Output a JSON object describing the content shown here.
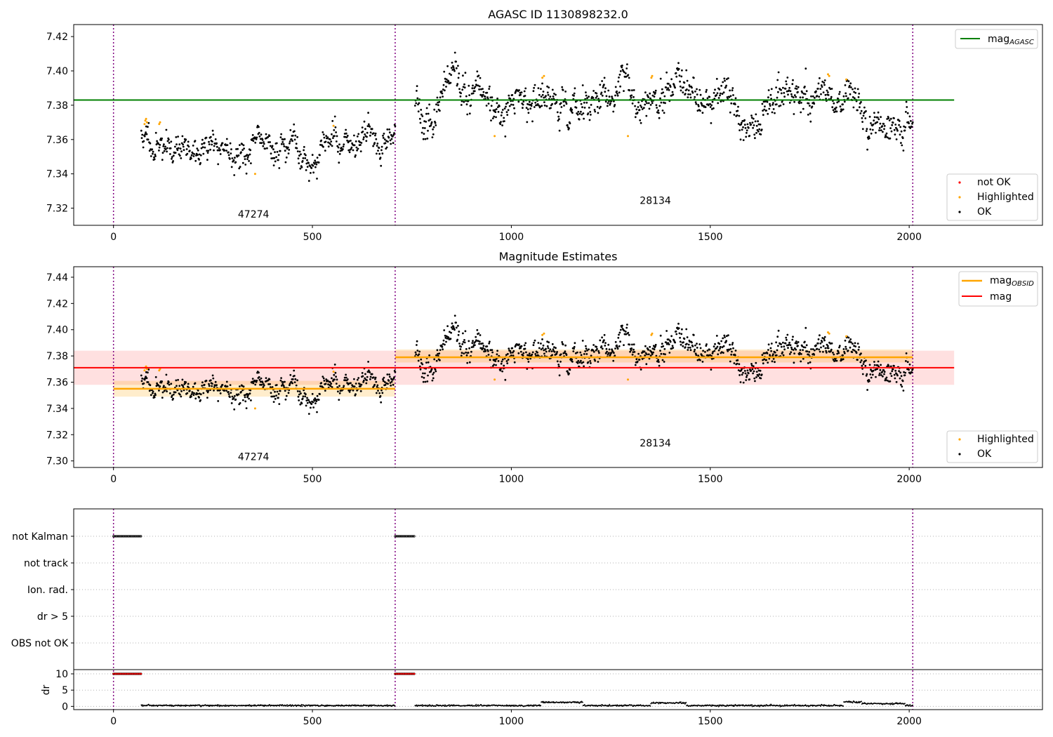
{
  "chart_data": [
    {
      "type": "scatter",
      "title": "AGASC ID 1130898232.0",
      "xlim": [
        -100,
        2335
      ],
      "ylim": [
        7.31,
        7.427
      ],
      "xticks": [
        0,
        500,
        1000,
        1500,
        2000
      ],
      "xtick_labels": [
        "0",
        "500",
        "1000",
        "1500",
        "2000"
      ],
      "yticks": [
        7.32,
        7.34,
        7.36,
        7.38,
        7.4,
        7.42
      ],
      "ytick_labels": [
        "7.32",
        "7.34",
        "7.36",
        "7.38",
        "7.40",
        "7.42"
      ],
      "obs_boundaries": [
        0,
        708,
        2009
      ],
      "obs_labels": [
        {
          "text": "47274",
          "x": 352,
          "y": 7.3145
        },
        {
          "text": "28134",
          "x": 1362,
          "y": 7.3225
        }
      ],
      "mag_agasc": 7.383,
      "mag_agasc_x": [
        -100,
        2113
      ],
      "mag_agasc_color": "#008000",
      "legend_top": [
        "mag_AGASC"
      ],
      "legend_bottom": [
        "not OK",
        "Highlighted",
        "OK"
      ],
      "series_colors": {
        "not OK": "#ff0000",
        "Highlighted": "#ffa500",
        "OK": "#000000"
      },
      "highlighted_points": [
        {
          "x": 78,
          "y": 7.369
        },
        {
          "x": 80,
          "y": 7.371
        },
        {
          "x": 82,
          "y": 7.372
        },
        {
          "x": 84,
          "y": 7.37
        },
        {
          "x": 115,
          "y": 7.369
        },
        {
          "x": 117,
          "y": 7.37
        },
        {
          "x": 356,
          "y": 7.34
        },
        {
          "x": 553,
          "y": 7.368
        },
        {
          "x": 958,
          "y": 7.362
        },
        {
          "x": 1078,
          "y": 7.396
        },
        {
          "x": 1082,
          "y": 7.397
        },
        {
          "x": 1293,
          "y": 7.362
        },
        {
          "x": 1352,
          "y": 7.396
        },
        {
          "x": 1354,
          "y": 7.397
        },
        {
          "x": 1796,
          "y": 7.398
        },
        {
          "x": 1799,
          "y": 7.397
        },
        {
          "x": 1842,
          "y": 7.395
        }
      ],
      "ok_segments": [
        {
          "x0": 70,
          "x1": 708,
          "n": 520,
          "level": 7.355,
          "noise": 0.0045,
          "start_level": 7.362,
          "seed": 11
        },
        {
          "x0": 758,
          "x1": 2009,
          "n": 1010,
          "level": 7.379,
          "noise": 0.0055,
          "start_level": 7.386,
          "seed": 23
        }
      ]
    },
    {
      "type": "scatter",
      "title": "Magnitude Estimates",
      "xlim": [
        -100,
        2335
      ],
      "ylim": [
        7.295,
        7.448
      ],
      "xticks": [
        0,
        500,
        1000,
        1500,
        2000
      ],
      "xtick_labels": [
        "0",
        "500",
        "1000",
        "1500",
        "2000"
      ],
      "yticks": [
        7.3,
        7.32,
        7.34,
        7.36,
        7.38,
        7.4,
        7.42,
        7.44
      ],
      "ytick_labels": [
        "7.30",
        "7.32",
        "7.34",
        "7.36",
        "7.38",
        "7.40",
        "7.42",
        "7.44"
      ],
      "obs_boundaries": [
        0,
        708,
        2009
      ],
      "obs_labels": [
        {
          "text": "47274",
          "x": 352,
          "y": 7.3005
        },
        {
          "text": "28134",
          "x": 1362,
          "y": 7.311
        }
      ],
      "mag": 7.371,
      "mag_band": [
        7.358,
        7.384
      ],
      "mag_x": [
        -100,
        2113
      ],
      "mag_color": "#ff0000",
      "mag_obsid": [
        {
          "x0": 0,
          "x1": 708,
          "value": 7.355,
          "band": [
            7.349,
            7.361
          ]
        },
        {
          "x0": 708,
          "x1": 2009,
          "value": 7.379,
          "band": [
            7.375,
            7.385
          ]
        }
      ],
      "mag_obsid_color": "#ffa500",
      "legend_top": [
        "mag_OBSID",
        "mag"
      ],
      "legend_bottom": [
        "Highlighted",
        "OK"
      ]
    },
    {
      "type": "scatter",
      "xlim": [
        -100,
        2335
      ],
      "xticks": [
        0,
        500,
        1000,
        1500,
        2000
      ],
      "xtick_labels": [
        "0",
        "500",
        "1000",
        "1500",
        "2000"
      ],
      "flag_labels": [
        "not Kalman",
        "not track",
        "Ion. rad.",
        "dr > 5",
        "OBS not OK"
      ],
      "not_kalman_ranges": [
        [
          0,
          70
        ],
        [
          708,
          758
        ]
      ],
      "dr": {
        "ylabel": "dr",
        "yticks": [
          0,
          5,
          10
        ],
        "ytick_labels": [
          "0",
          "5",
          "10"
        ],
        "ylim": [
          -1,
          11.3
        ],
        "saturated_ranges": [
          [
            0,
            70
          ],
          [
            708,
            758
          ]
        ],
        "saturated_value": 10,
        "saturated_color": "#ff0000",
        "trace_segments": [
          [
            70,
            708
          ],
          [
            758,
            2009
          ]
        ],
        "bump_ranges": [
          [
            1075,
            1180,
            1.0
          ],
          [
            1350,
            1440,
            0.8
          ],
          [
            1835,
            1880,
            1.1
          ],
          [
            1880,
            1990,
            0.6
          ]
        ]
      }
    }
  ],
  "top_legend": {
    "line_label": "mag",
    "line_sub": "AGASC",
    "scatter_labels": [
      "not OK",
      "Highlighted",
      "OK"
    ]
  },
  "mid_legend": {
    "obsid_label": "mag",
    "obsid_sub": "OBSID",
    "mag_label": "mag",
    "scatter_labels": [
      "Highlighted",
      "OK"
    ]
  }
}
